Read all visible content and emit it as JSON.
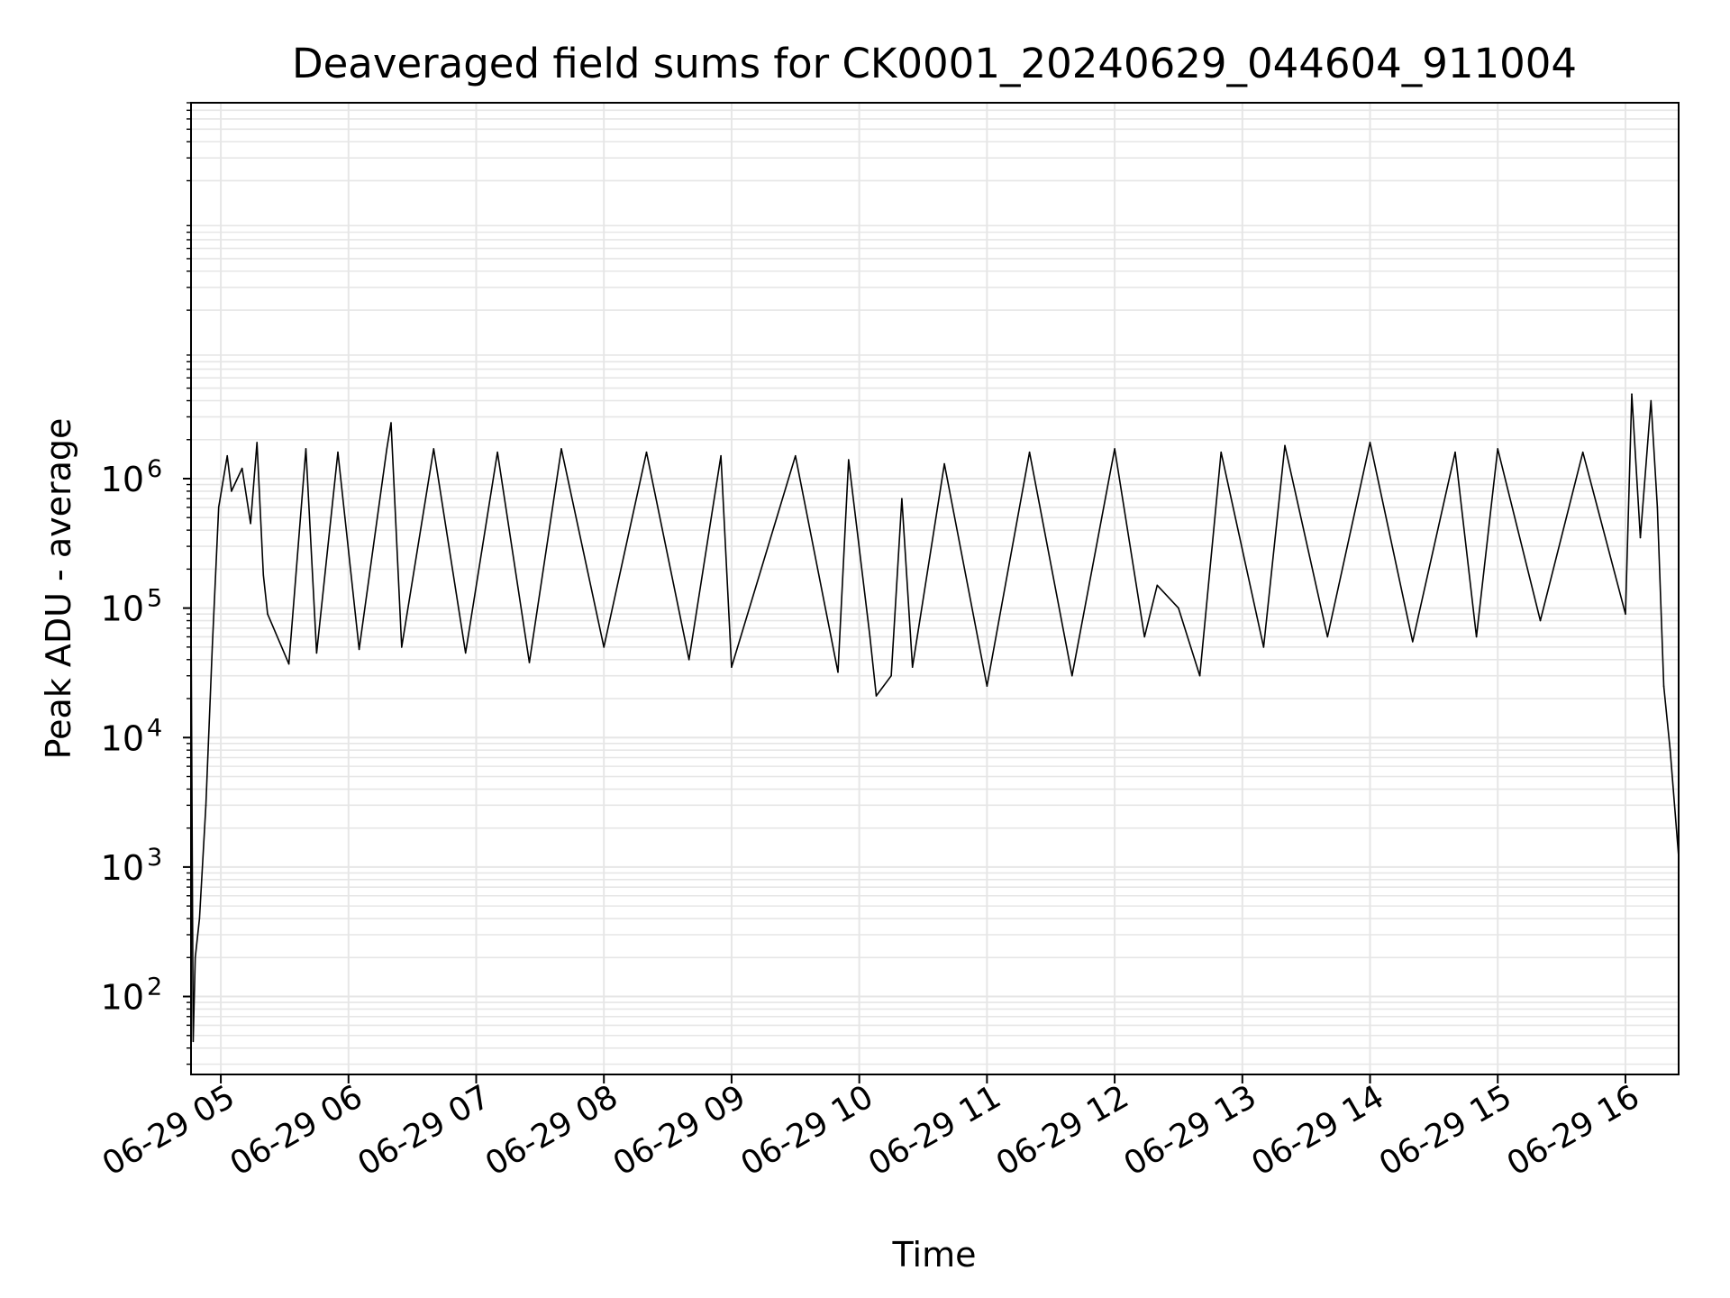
{
  "chart_data": {
    "type": "line",
    "title": "Deaveraged field sums for CK0001_20240629_044604_911004",
    "xlabel": "Time",
    "ylabel": "Peak ADU - average",
    "y_scale": "log",
    "ylim": [
      25,
      800000000
    ],
    "xlim": [
      "2024-06-29 04:46",
      "2024-06-29 16:25"
    ],
    "grid": true,
    "line_color": "#000000",
    "x_ticks": [
      {
        "value": "2024-06-29 05:00",
        "label": "06-29 05"
      },
      {
        "value": "2024-06-29 06:00",
        "label": "06-29 06"
      },
      {
        "value": "2024-06-29 07:00",
        "label": "06-29 07"
      },
      {
        "value": "2024-06-29 08:00",
        "label": "06-29 08"
      },
      {
        "value": "2024-06-29 09:00",
        "label": "06-29 09"
      },
      {
        "value": "2024-06-29 10:00",
        "label": "06-29 10"
      },
      {
        "value": "2024-06-29 11:00",
        "label": "06-29 11"
      },
      {
        "value": "2024-06-29 12:00",
        "label": "06-29 12"
      },
      {
        "value": "2024-06-29 13:00",
        "label": "06-29 13"
      },
      {
        "value": "2024-06-29 14:00",
        "label": "06-29 14"
      },
      {
        "value": "2024-06-29 15:00",
        "label": "06-29 15"
      },
      {
        "value": "2024-06-29 16:00",
        "label": "06-29 16"
      }
    ],
    "y_ticks": [
      {
        "value": 100,
        "base": "10",
        "exp": "2"
      },
      {
        "value": 1000,
        "base": "10",
        "exp": "3"
      },
      {
        "value": 10000,
        "base": "10",
        "exp": "4"
      },
      {
        "value": 100000,
        "base": "10",
        "exp": "5"
      },
      {
        "value": 1000000,
        "base": "10",
        "exp": "6"
      }
    ],
    "series": [
      {
        "points": [
          [
            "2024-06-29 04:46",
            100000
          ],
          [
            "2024-06-29 04:47",
            45
          ],
          [
            "2024-06-29 04:48",
            200
          ],
          [
            "2024-06-29 04:50",
            400
          ],
          [
            "2024-06-29 04:53",
            3000
          ],
          [
            "2024-06-29 04:56",
            50000
          ],
          [
            "2024-06-29 04:59",
            600000
          ],
          [
            "2024-06-29 05:03",
            1500000
          ],
          [
            "2024-06-29 05:05",
            800000
          ],
          [
            "2024-06-29 05:10",
            1200000
          ],
          [
            "2024-06-29 05:14",
            450000
          ],
          [
            "2024-06-29 05:17",
            1900000
          ],
          [
            "2024-06-29 05:20",
            180000
          ],
          [
            "2024-06-29 05:22",
            90000
          ],
          [
            "2024-06-29 05:32",
            37000
          ],
          [
            "2024-06-29 05:40",
            1700000
          ],
          [
            "2024-06-29 05:45",
            45000
          ],
          [
            "2024-06-29 05:55",
            1600000
          ],
          [
            "2024-06-29 06:05",
            48000
          ],
          [
            "2024-06-29 06:18",
            1700000
          ],
          [
            "2024-06-29 06:20",
            2700000
          ],
          [
            "2024-06-29 06:25",
            50000
          ],
          [
            "2024-06-29 06:40",
            1700000
          ],
          [
            "2024-06-29 06:55",
            45000
          ],
          [
            "2024-06-29 07:10",
            1600000
          ],
          [
            "2024-06-29 07:25",
            38000
          ],
          [
            "2024-06-29 07:40",
            1700000
          ],
          [
            "2024-06-29 08:00",
            50000
          ],
          [
            "2024-06-29 08:20",
            1600000
          ],
          [
            "2024-06-29 08:40",
            40000
          ],
          [
            "2024-06-29 08:55",
            1500000
          ],
          [
            "2024-06-29 09:00",
            35000
          ],
          [
            "2024-06-29 09:30",
            1500000
          ],
          [
            "2024-06-29 09:50",
            32000
          ],
          [
            "2024-06-29 09:55",
            1400000
          ],
          [
            "2024-06-29 10:05",
            60000
          ],
          [
            "2024-06-29 10:08",
            21000
          ],
          [
            "2024-06-29 10:15",
            30000
          ],
          [
            "2024-06-29 10:20",
            700000
          ],
          [
            "2024-06-29 10:25",
            35000
          ],
          [
            "2024-06-29 10:40",
            1300000
          ],
          [
            "2024-06-29 11:00",
            25000
          ],
          [
            "2024-06-29 11:20",
            1600000
          ],
          [
            "2024-06-29 11:40",
            30000
          ],
          [
            "2024-06-29 12:00",
            1700000
          ],
          [
            "2024-06-29 12:14",
            60000
          ],
          [
            "2024-06-29 12:20",
            150000
          ],
          [
            "2024-06-29 12:30",
            100000
          ],
          [
            "2024-06-29 12:40",
            30000
          ],
          [
            "2024-06-29 12:50",
            1600000
          ],
          [
            "2024-06-29 13:10",
            50000
          ],
          [
            "2024-06-29 13:20",
            1800000
          ],
          [
            "2024-06-29 13:40",
            60000
          ],
          [
            "2024-06-29 14:00",
            1900000
          ],
          [
            "2024-06-29 14:20",
            55000
          ],
          [
            "2024-06-29 14:40",
            1600000
          ],
          [
            "2024-06-29 14:50",
            60000
          ],
          [
            "2024-06-29 15:00",
            1700000
          ],
          [
            "2024-06-29 15:20",
            80000
          ],
          [
            "2024-06-29 15:40",
            1600000
          ],
          [
            "2024-06-29 16:00",
            90000
          ],
          [
            "2024-06-29 16:03",
            4500000
          ],
          [
            "2024-06-29 16:07",
            350000
          ],
          [
            "2024-06-29 16:12",
            4000000
          ],
          [
            "2024-06-29 16:15",
            600000
          ],
          [
            "2024-06-29 16:18",
            25000
          ],
          [
            "2024-06-29 16:21",
            8000
          ],
          [
            "2024-06-29 16:25",
            1200
          ]
        ]
      }
    ]
  }
}
